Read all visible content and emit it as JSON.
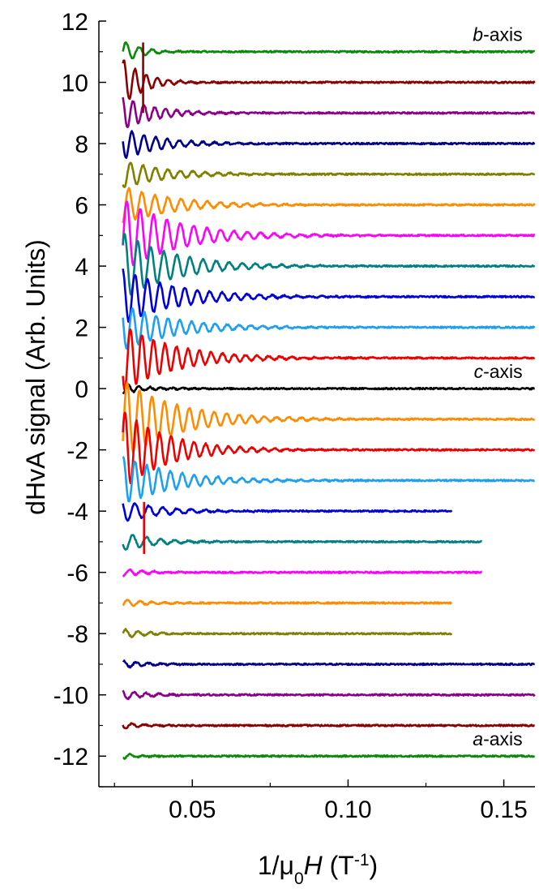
{
  "chart_data": {
    "type": "line",
    "xlabel": "1/μ0H (T-1)",
    "ylabel": "dHvA signal (Arb. Units)",
    "xlim": [
      0.02,
      0.16
    ],
    "ylim": [
      -13,
      12
    ],
    "x_ticks": [
      0.05,
      0.1,
      0.15
    ],
    "x_tick_labels": [
      "0.05",
      "0.10",
      "0.15"
    ],
    "y_ticks": [
      -12,
      -10,
      -8,
      -6,
      -4,
      -2,
      0,
      2,
      4,
      6,
      8,
      10,
      12
    ],
    "y_tick_labels": [
      "-12",
      "-10",
      "-8",
      "-6",
      "-4",
      "-2",
      "0",
      "2",
      "4",
      "6",
      "8",
      "10",
      "12"
    ],
    "grid": false,
    "annotations": [
      {
        "axis": "b",
        "suffix": "-axis",
        "x": 0.156,
        "y": 11.35
      },
      {
        "axis": "c",
        "suffix": "-axis",
        "x": 0.156,
        "y": 0.35
      },
      {
        "axis": "a",
        "suffix": "-axis",
        "x": 0.156,
        "y": -11.65
      }
    ],
    "series": [
      {
        "offset": 11,
        "color": "#0a8a0a",
        "x_start": 0.0277,
        "x_end": 0.16,
        "amplitude": 0.35,
        "decay": 0.006,
        "period": 0.0042
      },
      {
        "offset": 10,
        "color": "#8b0000",
        "x_start": 0.0277,
        "x_end": 0.16,
        "amplitude": 0.75,
        "decay": 0.007,
        "period": 0.0036
      },
      {
        "offset": 9,
        "color": "#8b008b",
        "x_start": 0.0277,
        "x_end": 0.16,
        "amplitude": 0.55,
        "decay": 0.01,
        "period": 0.0035
      },
      {
        "offset": 8,
        "color": "#00008b",
        "x_start": 0.0277,
        "x_end": 0.16,
        "amplitude": 0.5,
        "decay": 0.012,
        "period": 0.0038
      },
      {
        "offset": 7,
        "color": "#808000",
        "x_start": 0.0277,
        "x_end": 0.16,
        "amplitude": 0.45,
        "decay": 0.014,
        "period": 0.004
      },
      {
        "offset": 6,
        "color": "#ff8c00",
        "x_start": 0.0277,
        "x_end": 0.16,
        "amplitude": 0.6,
        "decay": 0.016,
        "period": 0.0042
      },
      {
        "offset": 5,
        "color": "#ff00ff",
        "x_start": 0.0277,
        "x_end": 0.16,
        "amplitude": 1.2,
        "decay": 0.017,
        "period": 0.0043
      },
      {
        "offset": 4,
        "color": "#008080",
        "x_start": 0.0277,
        "x_end": 0.16,
        "amplitude": 1.1,
        "decay": 0.016,
        "period": 0.0042
      },
      {
        "offset": 3,
        "color": "#0000dd",
        "x_start": 0.0277,
        "x_end": 0.16,
        "amplitude": 0.9,
        "decay": 0.017,
        "period": 0.004
      },
      {
        "offset": 2,
        "color": "#1e9ff0",
        "x_start": 0.0277,
        "x_end": 0.16,
        "amplitude": 0.75,
        "decay": 0.016,
        "period": 0.0038
      },
      {
        "offset": 1,
        "color": "#ee0000",
        "x_start": 0.0277,
        "x_end": 0.16,
        "amplitude": 1.1,
        "decay": 0.016,
        "period": 0.0037
      },
      {
        "offset": 0,
        "color": "#000000",
        "x_start": 0.0277,
        "x_end": 0.16,
        "amplitude": 0.15,
        "decay": 0.008,
        "period": 0.0035
      },
      {
        "offset": -1,
        "color": "#ff8c00",
        "x_start": 0.0277,
        "x_end": 0.16,
        "amplitude": 1.3,
        "decay": 0.017,
        "period": 0.004
      },
      {
        "offset": -2,
        "color": "#ee0000",
        "x_start": 0.0277,
        "x_end": 0.16,
        "amplitude": 1.3,
        "decay": 0.014,
        "period": 0.0037
      },
      {
        "offset": -3,
        "color": "#1e9ff0",
        "x_start": 0.0277,
        "x_end": 0.16,
        "amplitude": 0.8,
        "decay": 0.016,
        "period": 0.0038
      },
      {
        "offset": -4,
        "color": "#0000dd",
        "x_start": 0.0277,
        "x_end": 0.1335,
        "amplitude": 0.35,
        "decay": 0.012,
        "period": 0.0045
      },
      {
        "offset": -5,
        "color": "#008080",
        "x_start": 0.0277,
        "x_end": 0.143,
        "amplitude": 0.3,
        "decay": 0.01,
        "period": 0.0045
      },
      {
        "offset": -6,
        "color": "#ff00ff",
        "x_start": 0.0277,
        "x_end": 0.143,
        "amplitude": 0.12,
        "decay": 0.008,
        "period": 0.004
      },
      {
        "offset": -7,
        "color": "#ff8c00",
        "x_start": 0.0277,
        "x_end": 0.1335,
        "amplitude": 0.12,
        "decay": 0.008,
        "period": 0.004
      },
      {
        "offset": -8,
        "color": "#808000",
        "x_start": 0.0277,
        "x_end": 0.1335,
        "amplitude": 0.15,
        "decay": 0.007,
        "period": 0.004
      },
      {
        "offset": -9,
        "color": "#00008b",
        "x_start": 0.0277,
        "x_end": 0.16,
        "amplitude": 0.12,
        "decay": 0.007,
        "period": 0.004
      },
      {
        "offset": -10,
        "color": "#8b008b",
        "x_start": 0.0277,
        "x_end": 0.16,
        "amplitude": 0.15,
        "decay": 0.008,
        "period": 0.004
      },
      {
        "offset": -11,
        "color": "#8b0000",
        "x_start": 0.0277,
        "x_end": 0.16,
        "amplitude": 0.1,
        "decay": 0.007,
        "period": 0.004
      },
      {
        "offset": -12,
        "color": "#0a8a0a",
        "x_start": 0.0277,
        "x_end": 0.16,
        "amplitude": 0.08,
        "decay": 0.006,
        "period": 0.004
      }
    ],
    "spikes": [
      {
        "x": 0.0345,
        "y_from": -3.7,
        "y_to": -5.4,
        "color": "#ee0000"
      },
      {
        "x": 0.0342,
        "y_from": 9.0,
        "y_to": 11.3,
        "color": "#8b0000"
      }
    ]
  }
}
